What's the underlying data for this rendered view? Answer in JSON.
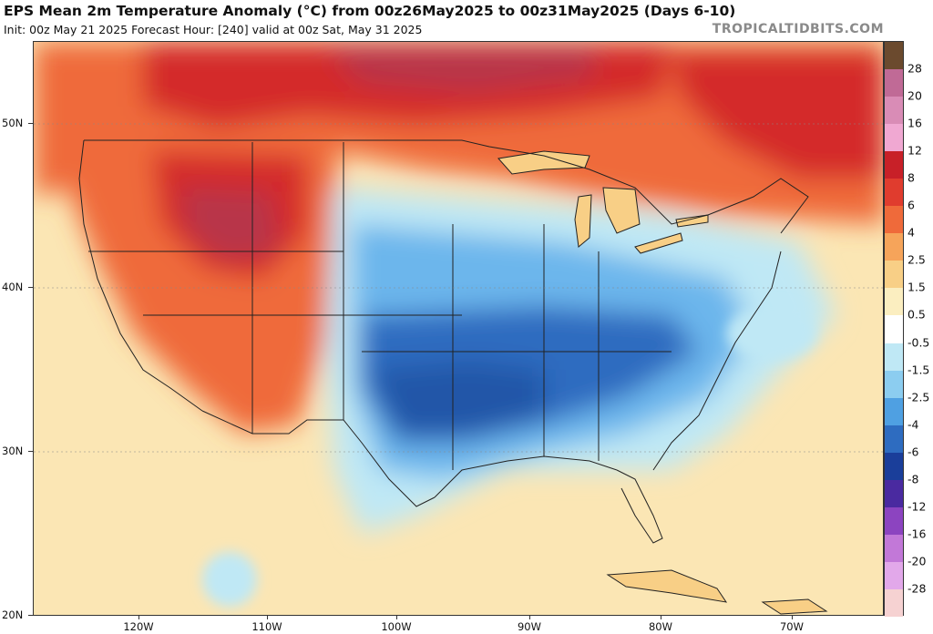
{
  "header": {
    "title": "EPS Mean 2m Temperature Anomaly (°C) from 00z26May2025 to 00z31May2025 (Days 6-10)",
    "subtitle": "Init: 00z May 21 2025   Forecast Hour: [240]   valid at 00z Sat, May 31 2025",
    "brand": "TROPICALTIDBITS.COM"
  },
  "axes": {
    "latitude_labels": [
      "50N",
      "40N",
      "30N",
      "20N"
    ],
    "longitude_labels": [
      "120W",
      "110W",
      "100W",
      "90W",
      "80W",
      "70W"
    ]
  },
  "colorbar": {
    "labels": [
      "28",
      "20",
      "16",
      "12",
      "8",
      "6",
      "4",
      "2.5",
      "1.5",
      "0.5",
      "-0.5",
      "-1.5",
      "-2.5",
      "-4",
      "-6",
      "-8",
      "-12",
      "-16",
      "-20",
      "-28"
    ],
    "colors": [
      "#6b4a2e",
      "#c06a96",
      "#d98cb6",
      "#f0a8d2",
      "#c82028",
      "#e03c2e",
      "#ef6a3a",
      "#f6a45a",
      "#f8cf86",
      "#fbeec0",
      "#ffffff",
      "#bfe8f5",
      "#8ccdf0",
      "#4fa0e2",
      "#2e6cc0",
      "#1a3e9a",
      "#4a2aa0",
      "#8c44c0",
      "#c278d8",
      "#e2a8ea",
      "#f6d2d2"
    ]
  },
  "map": {
    "colors": {
      "ocean_neutral": "#fbe6b4",
      "warm_pale": "#f8cf86",
      "warm": "#ef6a3a",
      "warm_strong": "#d42a2a",
      "very_warm": "#b8344a",
      "cool_pale": "#bfe8f5",
      "cool": "#6cb6ec",
      "cold": "#2e6cc0",
      "cold_strong": "#2256a8",
      "border": "#222222"
    }
  }
}
